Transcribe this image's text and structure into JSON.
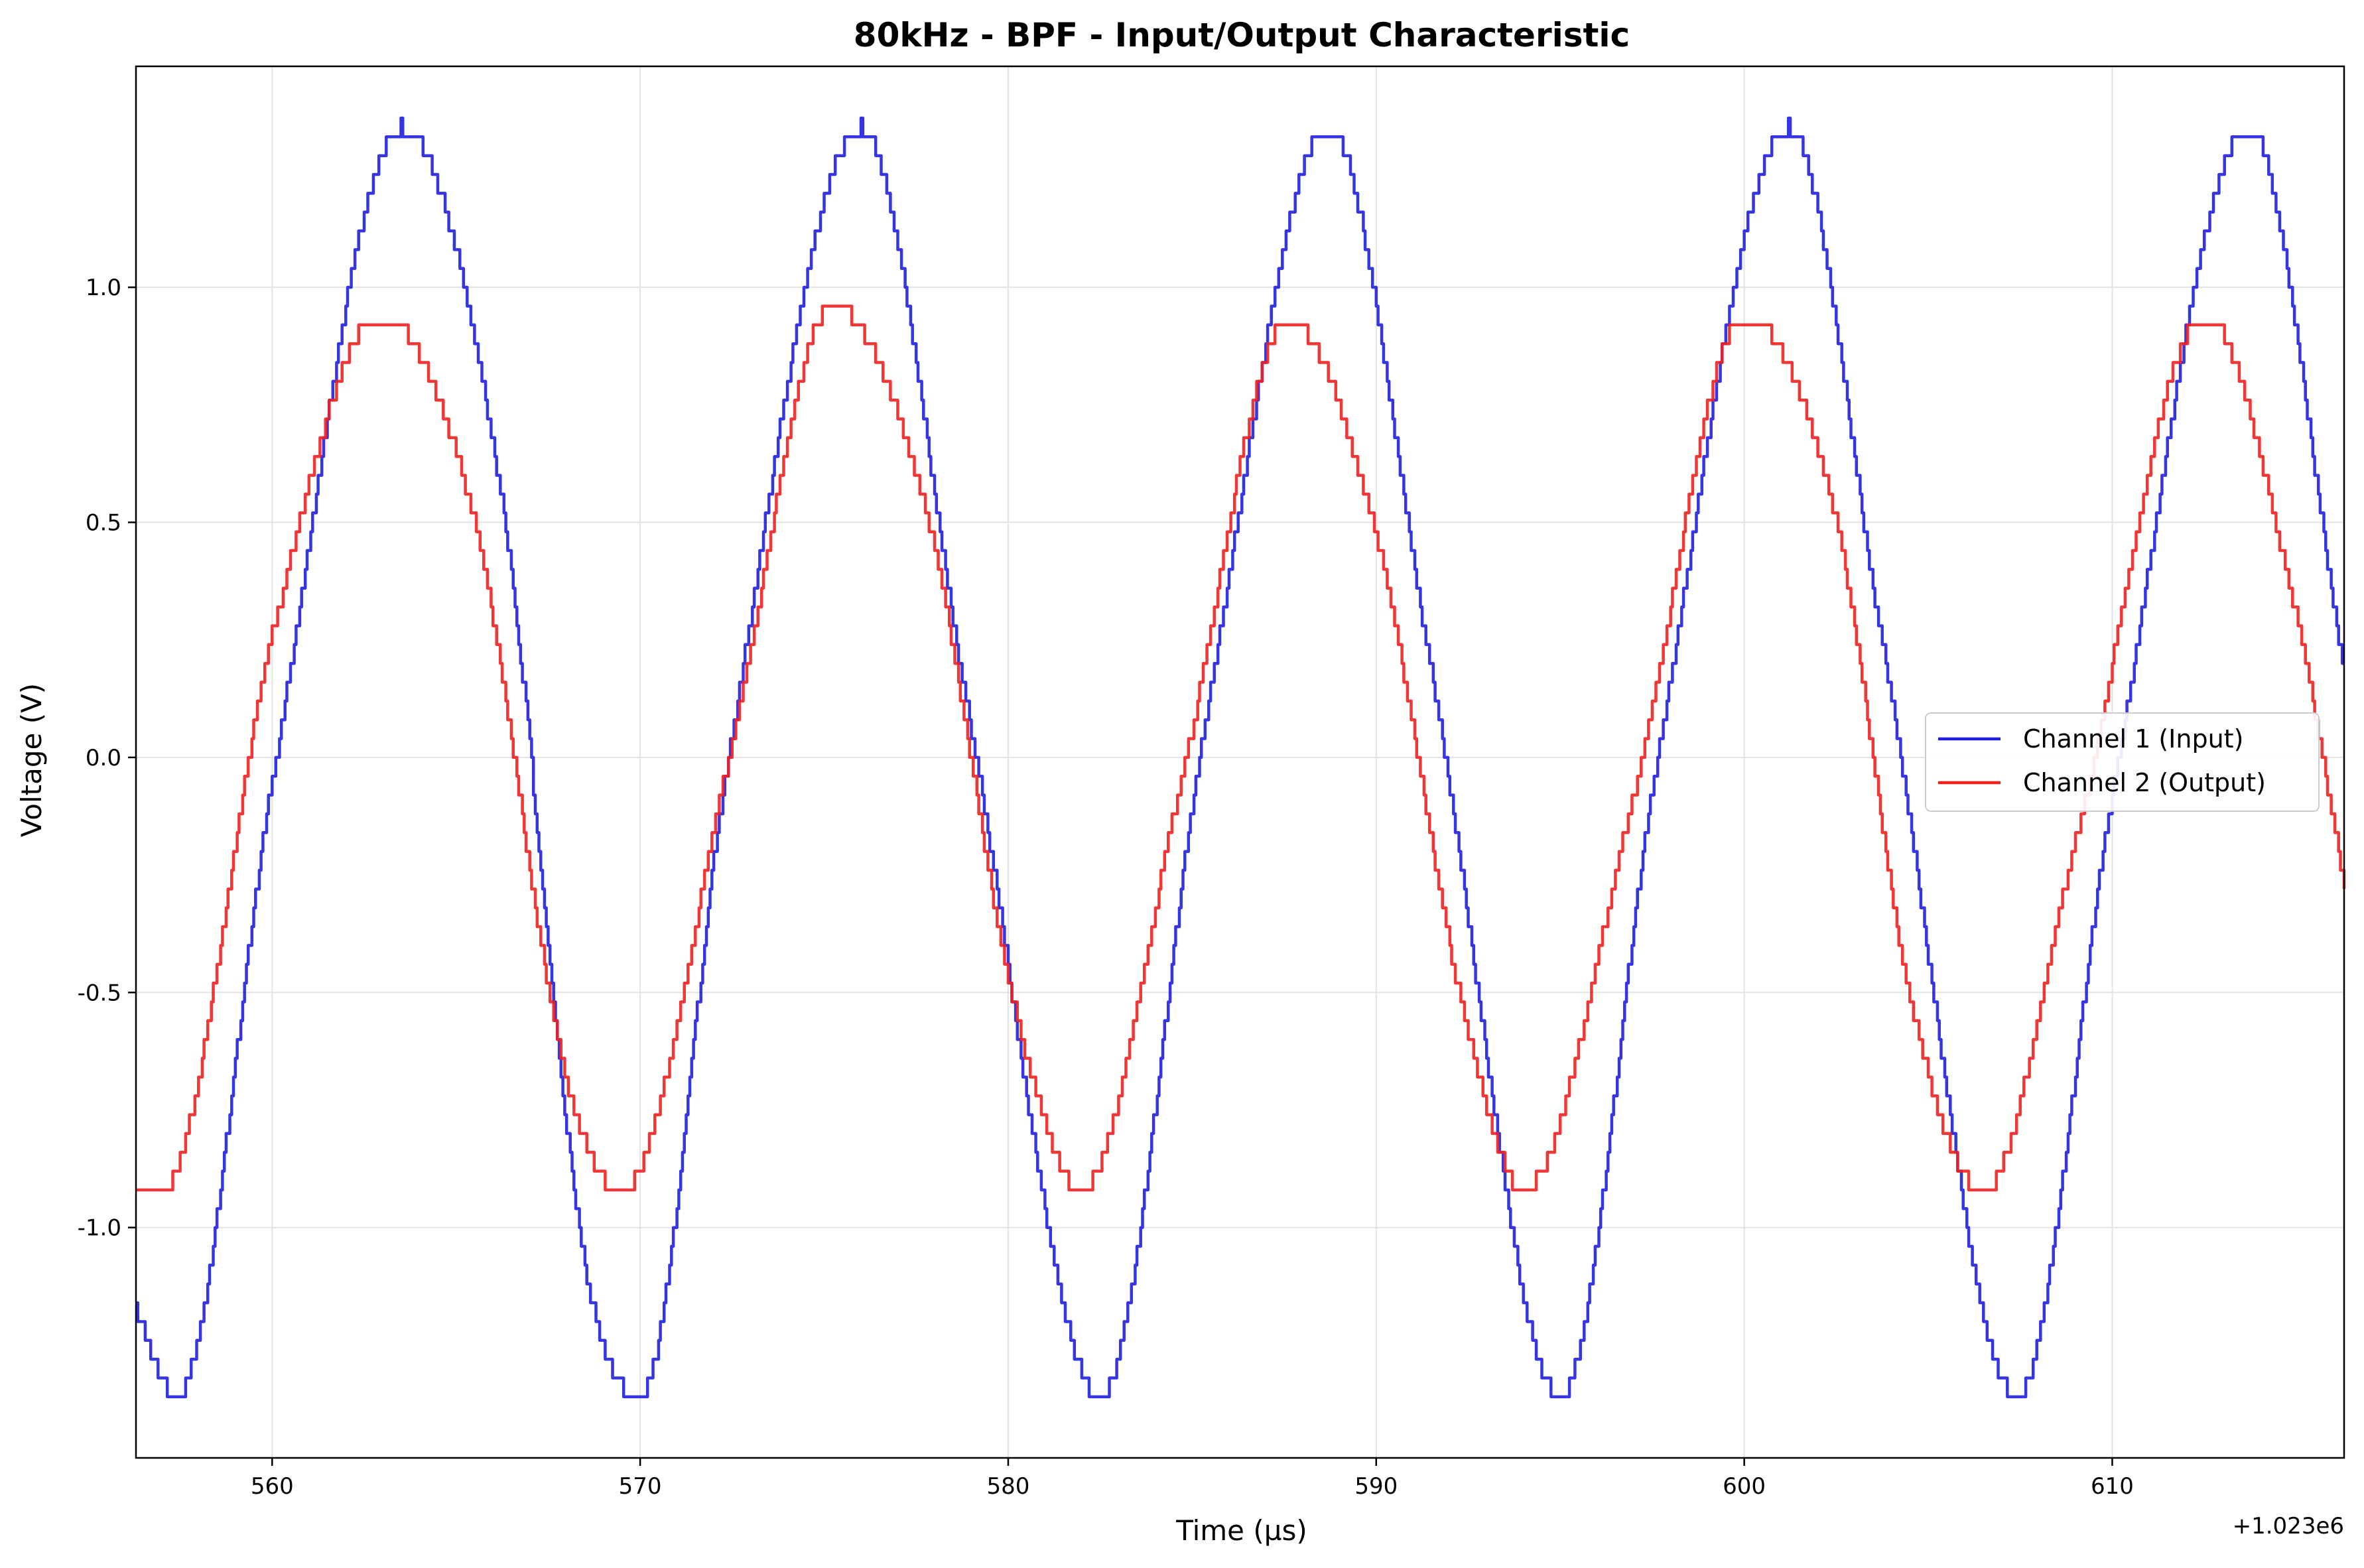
{
  "chart_data": {
    "type": "line",
    "title": "80kHz - BPF - Input/Output Characteristic",
    "xlabel": "Time (µs)",
    "ylabel": "Voltage (V)",
    "x_offset_label": "+1.023e6",
    "xlim": [
      556.3,
      616.3
    ],
    "ylim": [
      -1.49,
      1.47
    ],
    "xticks": [
      560,
      570,
      580,
      590,
      600,
      610
    ],
    "xtick_labels": [
      "560",
      "570",
      "580",
      "590",
      "600",
      "610"
    ],
    "yticks": [
      -1.0,
      -0.5,
      0.0,
      0.5,
      1.0
    ],
    "ytick_labels": [
      "-1.0",
      "-0.5",
      "0.0",
      "0.5",
      "1.0"
    ],
    "grid": true,
    "legend_position": "center-right",
    "quantization_step_v": 0.04,
    "series": [
      {
        "name": "Channel 1 (Input)",
        "color": "#1f1fe0",
        "x": [
          556.3,
          557.4,
          560.0,
          563.5,
          566.2,
          568.5,
          570.0,
          572.3,
          576.0,
          578.9,
          582.5,
          585.3,
          588.7,
          591.5,
          595.0,
          597.6,
          601.2,
          603.8,
          607.4,
          610.0,
          613.7,
          616.3
        ],
        "y": [
          -1.18,
          -1.36,
          -0.05,
          1.34,
          0.57,
          -1.08,
          -1.36,
          -0.05,
          1.34,
          0.1,
          -1.36,
          0.05,
          1.34,
          0.18,
          -1.36,
          -0.02,
          1.34,
          0.22,
          -1.36,
          -0.08,
          1.34,
          0.19
        ]
      },
      {
        "name": "Channel 2 (Output)",
        "color": "#ef2020",
        "x": [
          556.3,
          557.0,
          560.0,
          562.9,
          565.5,
          568.0,
          569.5,
          572.5,
          575.2,
          577.8,
          580.2,
          582.0,
          584.7,
          587.6,
          590.0,
          592.4,
          594.0,
          597.0,
          600.0,
          602.5,
          604.5,
          606.5,
          609.0,
          612.5,
          615.0,
          616.3
        ],
        "y": [
          -0.92,
          -0.92,
          0.26,
          0.94,
          0.5,
          -0.69,
          -0.92,
          0.03,
          0.96,
          0.51,
          -0.54,
          -0.92,
          -0.05,
          0.93,
          0.47,
          -0.55,
          -0.92,
          -0.08,
          0.94,
          0.5,
          -0.51,
          -0.92,
          -0.18,
          0.94,
          0.3,
          -0.27
        ]
      }
    ]
  }
}
